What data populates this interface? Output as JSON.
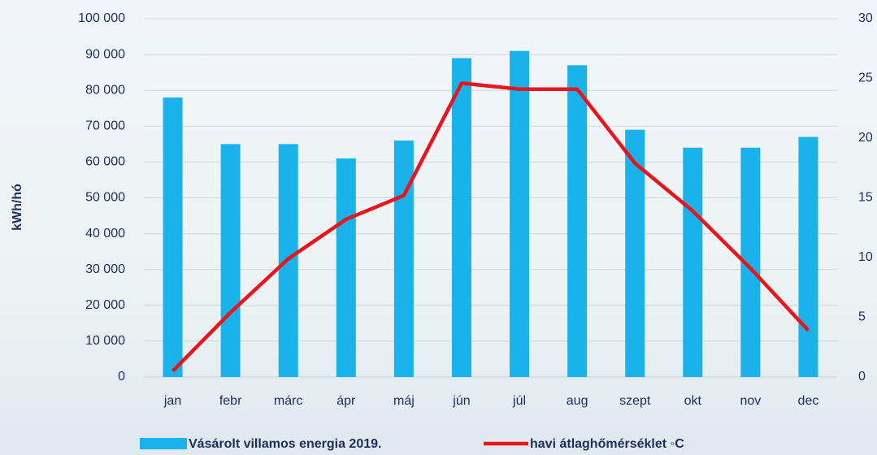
{
  "chart_data": {
    "type": "bar-line",
    "y_label": "kWh/hó",
    "categories": [
      "jan",
      "febr",
      "márc",
      "ápr",
      "máj",
      "jún",
      "júl",
      "aug",
      "szept",
      "okt",
      "nov",
      "dec"
    ],
    "series": [
      {
        "name": "Vásárolt villamos energia 2019.",
        "type": "bar",
        "color": "#19b2ea",
        "values": [
          78000,
          65000,
          65000,
          61000,
          66000,
          89000,
          91000,
          87000,
          69000,
          64000,
          64000,
          67000
        ]
      },
      {
        "name": "havi átlaghőmérséklet ◦C",
        "type": "line",
        "axis": "y2",
        "color": "#e8151d",
        "values": [
          0.5,
          5.4,
          9.9,
          13.2,
          15.2,
          24.6,
          24.1,
          24.1,
          17.9,
          13.9,
          9.1,
          3.9
        ]
      }
    ],
    "ylim": [
      0,
      100000
    ],
    "yticks": [
      {
        "value": 0,
        "label": "0"
      },
      {
        "value": 10000,
        "label": "10 000"
      },
      {
        "value": 20000,
        "label": "20 000"
      },
      {
        "value": 30000,
        "label": "30 000"
      },
      {
        "value": 40000,
        "label": "40 000"
      },
      {
        "value": 50000,
        "label": "50 000"
      },
      {
        "value": 60000,
        "label": "60 000"
      },
      {
        "value": 70000,
        "label": "70 000"
      },
      {
        "value": 80000,
        "label": "80 000"
      },
      {
        "value": 90000,
        "label": "90 000"
      },
      {
        "value": 100000,
        "label": "100 000"
      }
    ],
    "y2lim": [
      0,
      30
    ],
    "y2ticks": [
      0,
      5,
      10,
      15,
      20,
      25,
      30
    ],
    "grid": true
  }
}
